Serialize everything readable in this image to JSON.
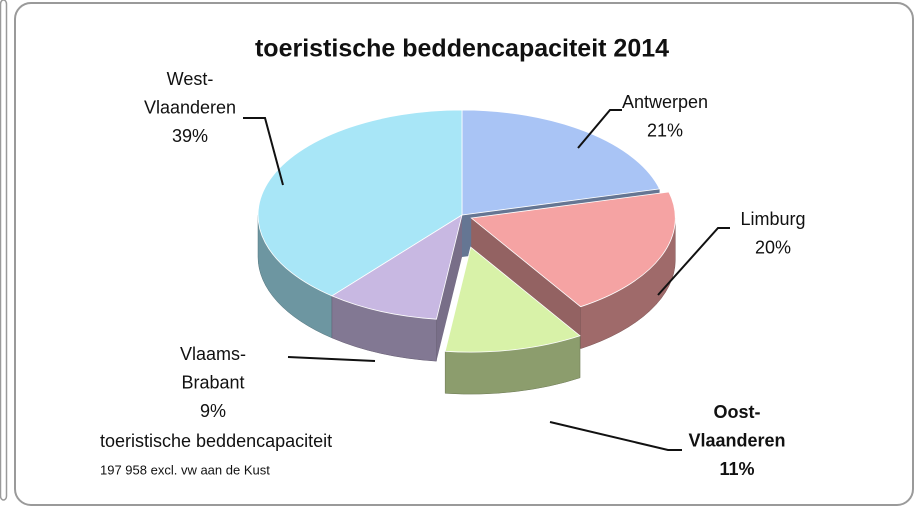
{
  "chart_data": {
    "type": "pie3d",
    "title": "toeristische beddencapaciteit 2014",
    "categories": [
      "Antwerpen",
      "Limburg",
      "Oost-Vlaanderen",
      "Vlaams-Brabant",
      "West-Vlaanderen"
    ],
    "values": [
      21,
      20,
      11,
      9,
      39
    ],
    "value_labels": [
      "21%",
      "20%",
      "11%",
      "9%",
      "39%"
    ],
    "colors": [
      "#a9c4f5",
      "#f5a3a3",
      "#d8f2a8",
      "#c8b8e2",
      "#a8e6f7"
    ],
    "annotations": [
      "toeristische beddencapaciteit",
      "197 958 excl. vw aan de Kust"
    ]
  }
}
